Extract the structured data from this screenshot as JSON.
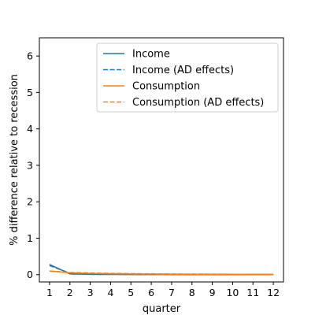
{
  "chart_data": {
    "type": "line",
    "xlabel": "quarter",
    "ylabel": "% difference relative to recession",
    "x": [
      1,
      2,
      3,
      4,
      5,
      6,
      7,
      8,
      9,
      10,
      11,
      12
    ],
    "xticks": [
      "1",
      "2",
      "3",
      "4",
      "5",
      "6",
      "7",
      "8",
      "9",
      "10",
      "11",
      "12"
    ],
    "yticks": [
      "0",
      "1",
      "2",
      "3",
      "4",
      "5",
      "6"
    ],
    "xlim": [
      0.5,
      12.5
    ],
    "ylim": [
      -0.2,
      6.5
    ],
    "grid": false,
    "legend_position": "top-right",
    "series": [
      {
        "name": "Income",
        "color": "#1f77b4",
        "dash": "solid",
        "values": [
          0.28,
          0.02,
          0.01,
          0.005,
          0.004,
          0.003,
          0.003,
          0.002,
          0.002,
          0.002,
          0.001,
          0.001
        ]
      },
      {
        "name": "Income (AD effects)",
        "color": "#1f77b4",
        "dash": "dashed",
        "values": [
          0.25,
          0.04,
          0.02,
          0.012,
          0.008,
          0.006,
          0.005,
          0.004,
          0.003,
          0.003,
          0.002,
          0.002
        ]
      },
      {
        "name": "Consumption",
        "color": "#ff7f0e",
        "dash": "solid",
        "values": [
          0.1,
          0.05,
          0.035,
          0.025,
          0.02,
          0.016,
          0.013,
          0.011,
          0.009,
          0.008,
          0.007,
          0.006
        ]
      },
      {
        "name": "Consumption (AD effects)",
        "color": "#ff7f0e",
        "dash": "dashed",
        "values": [
          0.1,
          0.06,
          0.045,
          0.035,
          0.028,
          0.022,
          0.018,
          0.015,
          0.013,
          0.011,
          0.01,
          0.009
        ]
      }
    ]
  }
}
